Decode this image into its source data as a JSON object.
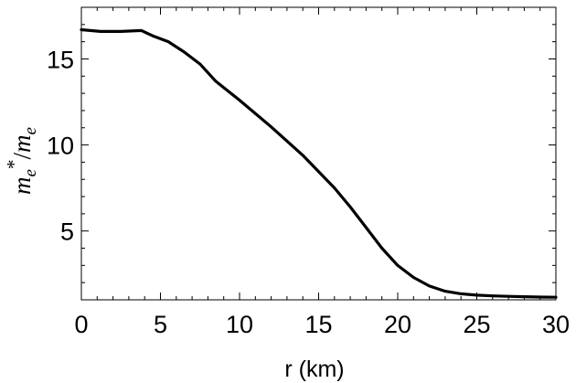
{
  "chart_data": {
    "type": "line",
    "xlabel": "r (km)",
    "ylabel": {
      "base": "m",
      "sub": "e",
      "sup": "*",
      "sep": "/",
      "den_base": "m",
      "den_sub": "e"
    },
    "xlim": [
      0,
      30
    ],
    "ylim": [
      1,
      18
    ],
    "x_ticks": [
      0,
      5,
      10,
      15,
      20,
      25,
      30
    ],
    "y_ticks": [
      5,
      10,
      15
    ],
    "grid": false,
    "series": [
      {
        "x": [
          0,
          1.2,
          2.5,
          3.8,
          4.5,
          5.5,
          6.5,
          7.5,
          8.5,
          10,
          12,
          14,
          16,
          17,
          18,
          19,
          20,
          21,
          22,
          23,
          24,
          25,
          26,
          27,
          28,
          29,
          30
        ],
        "y": [
          16.7,
          16.6,
          16.6,
          16.65,
          16.35,
          16.0,
          15.4,
          14.7,
          13.7,
          12.6,
          11.05,
          9.4,
          7.5,
          6.4,
          5.2,
          4.0,
          3.0,
          2.3,
          1.8,
          1.5,
          1.35,
          1.27,
          1.23,
          1.2,
          1.18,
          1.16,
          1.15
        ],
        "color": "#000000"
      }
    ]
  }
}
